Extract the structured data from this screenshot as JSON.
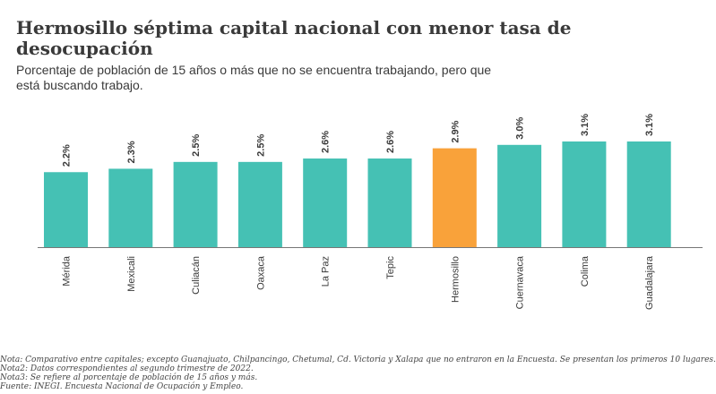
{
  "header": {
    "title": "Hermosillo séptima capital nacional con menor tasa de desocupación",
    "subtitle": "Porcentaje de población de 15 años o más que no se encuentra trabajando, pero que está buscando trabajo."
  },
  "colors": {
    "bar": "#45c1b4",
    "highlight": "#f9a23a",
    "axis": "#777777",
    "text": "#3a3a3a"
  },
  "chart_data": {
    "type": "bar",
    "title": "",
    "xlabel": "",
    "ylabel": "",
    "categories": [
      "Mérida",
      "Mexicali",
      "Culiacán",
      "Oaxaca",
      "La Paz",
      "Tepic",
      "Hermosillo",
      "Cuernavaca",
      "Colima",
      "Guadalajara"
    ],
    "values": [
      2.2,
      2.3,
      2.5,
      2.5,
      2.6,
      2.6,
      2.9,
      3.0,
      3.1,
      3.1
    ],
    "value_labels": [
      "2.2%",
      "2.3%",
      "2.5%",
      "2.5%",
      "2.6%",
      "2.6%",
      "2.9%",
      "3.0%",
      "3.1%",
      "3.1%"
    ],
    "highlight_category": "Hermosillo",
    "ylim": [
      0,
      3.1
    ],
    "grid": false,
    "legend": "none"
  },
  "notes": [
    "Nota: Comparativo entre capitales; excepto Guanajuato, Chilpancingo, Chetumal, Cd. Victoria y Xalapa que no entraron en la Encuesta. Se presentan los primeros 10 lugares.",
    "Nota2: Datos correspondientes al segundo trimestre de 2022.",
    "Nota3: Se refiere al porcentaje de población de 15 años y más.",
    "Fuente: INEGI. Encuesta Nacional de Ocupación y Empleo."
  ]
}
